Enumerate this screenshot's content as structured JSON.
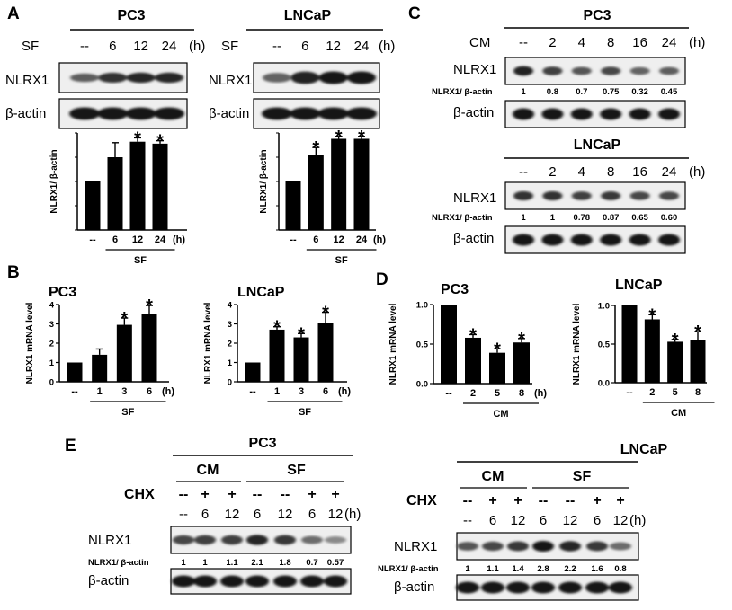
{
  "panels": {
    "A": {
      "letter": "A",
      "pc3": {
        "title": "PC3",
        "condition": "SF",
        "unit": "(h)",
        "time_labels": [
          "--",
          "6",
          "12",
          "24"
        ],
        "proteins": [
          "NLRX1",
          "β-actin"
        ],
        "chart_data": {
          "type": "bar",
          "categories": [
            "--",
            "6",
            "12",
            "24"
          ],
          "values": [
            1.0,
            1.5,
            1.82,
            1.78
          ],
          "errors": [
            0,
            0.3,
            0.08,
            0.06
          ],
          "significant": [
            false,
            false,
            true,
            true
          ],
          "ylabel": "NLRX1/ β-actin",
          "xlabel": "SF",
          "unit": "(h)",
          "ylim": [
            0,
            2
          ]
        }
      },
      "lncap": {
        "title": "LNCaP",
        "condition": "SF",
        "unit": "(h)",
        "time_labels": [
          "--",
          "6",
          "12",
          "24"
        ],
        "proteins": [
          "NLRX1",
          "β-actin"
        ],
        "chart_data": {
          "type": "bar",
          "categories": [
            "--",
            "6",
            "12",
            "24"
          ],
          "values": [
            1.0,
            1.55,
            1.88,
            1.88
          ],
          "errors": [
            0,
            0.15,
            0.05,
            0.05
          ],
          "significant": [
            false,
            true,
            true,
            true
          ],
          "ylabel": "NLRX1/ β-actin",
          "xlabel": "SF",
          "unit": "(h)",
          "ylim": [
            0,
            2
          ]
        }
      }
    },
    "B": {
      "letter": "B",
      "pc3": {
        "title": "PC3",
        "chart_data": {
          "type": "bar",
          "categories": [
            "--",
            "1",
            "3",
            "6"
          ],
          "values": [
            1.0,
            1.4,
            2.95,
            3.5
          ],
          "errors": [
            0,
            0.3,
            0.35,
            0.45
          ],
          "significant": [
            false,
            false,
            true,
            true
          ],
          "ylabel": "NLRX1 mRNA level",
          "xlabel": "SF",
          "unit": "(h)",
          "ylim": [
            0,
            4
          ],
          "yticks": [
            "0",
            "1",
            "2",
            "3",
            "4"
          ]
        }
      },
      "lncap": {
        "title": "LNCaP",
        "chart_data": {
          "type": "bar",
          "categories": [
            "--",
            "1",
            "3",
            "6"
          ],
          "values": [
            1.0,
            2.7,
            2.3,
            3.05
          ],
          "errors": [
            0,
            0.15,
            0.2,
            0.55
          ],
          "significant": [
            false,
            true,
            true,
            true
          ],
          "ylabel": "NLRX1 mRNA level",
          "xlabel": "SF",
          "unit": "(h)",
          "ylim": [
            0,
            4
          ],
          "yticks": [
            "0",
            "1",
            "2",
            "3",
            "4"
          ]
        }
      }
    },
    "C": {
      "letter": "C",
      "pc3": {
        "title": "PC3",
        "condition": "CM",
        "unit": "(h)",
        "time_labels": [
          "--",
          "2",
          "4",
          "8",
          "16",
          "24"
        ],
        "ratio_label": "NLRX1/ β-actin",
        "ratios": [
          "1",
          "0.8",
          "0.7",
          "0.75",
          "0.32",
          "0.45"
        ],
        "proteins": [
          "NLRX1",
          "β-actin"
        ]
      },
      "lncap": {
        "title": "LNCaP",
        "unit": "(h)",
        "time_labels": [
          "--",
          "2",
          "4",
          "8",
          "16",
          "24"
        ],
        "ratio_label": "NLRX1/ β-actin",
        "ratios": [
          "1",
          "1",
          "0.78",
          "0.87",
          "0.65",
          "0.60"
        ],
        "proteins": [
          "NLRX1",
          "β-actin"
        ]
      }
    },
    "D": {
      "letter": "D",
      "pc3": {
        "title": "PC3",
        "chart_data": {
          "type": "bar",
          "categories": [
            "--",
            "2",
            "5",
            "8"
          ],
          "values": [
            1.0,
            0.58,
            0.39,
            0.52
          ],
          "errors": [
            0,
            0.04,
            0.05,
            0.05
          ],
          "significant": [
            false,
            true,
            true,
            true
          ],
          "ylabel": "NLRX1 mRNA level",
          "xlabel": "CM",
          "unit": "(h)",
          "ylim": [
            0,
            1
          ],
          "yticks": [
            "0.0",
            "0.5",
            "1.0"
          ]
        }
      },
      "lncap": {
        "title": "LNCaP",
        "chart_data": {
          "type": "bar",
          "categories": [
            "--",
            "2",
            "5",
            "8"
          ],
          "values": [
            1.0,
            0.82,
            0.53,
            0.55
          ],
          "errors": [
            0,
            0.06,
            0.03,
            0.11
          ],
          "significant": [
            false,
            true,
            true,
            true
          ],
          "ylabel": "NLRX1 mRNA level",
          "xlabel": "CM",
          "ylim": [
            0,
            1
          ],
          "yticks": [
            "0.0",
            "0.5",
            "1.0"
          ]
        }
      }
    },
    "E": {
      "letter": "E",
      "pc3": {
        "title": "PC3",
        "group1": "CM",
        "group2": "SF",
        "chx_label": "CHX",
        "chx": [
          "--",
          "+",
          "+",
          "--",
          "--",
          "+",
          "+"
        ],
        "time_labels": [
          "--",
          "6",
          "12",
          "6",
          "12",
          "6",
          "12"
        ],
        "unit": "(h)",
        "ratio_label": "NLRX1/ β-actin",
        "ratios": [
          "1",
          "1",
          "1.1",
          "2.1",
          "1.8",
          "0.7",
          "0.57"
        ],
        "proteins": [
          "NLRX1",
          "β-actin"
        ]
      },
      "lncap": {
        "title": "LNCaP",
        "group1": "CM",
        "group2": "SF",
        "chx_label": "CHX",
        "chx": [
          "--",
          "+",
          "+",
          "--",
          "--",
          "+",
          "+"
        ],
        "time_labels": [
          "--",
          "6",
          "12",
          "6",
          "12",
          "6",
          "12"
        ],
        "unit": "(h)",
        "ratio_label": "NLRX1/ β-actin",
        "ratios": [
          "1",
          "1.1",
          "1.4",
          "2.8",
          "2.2",
          "1.6",
          "0.8"
        ],
        "proteins": [
          "NLRX1",
          "β-actin"
        ]
      }
    }
  },
  "blot_intensity": {
    "A_pc3_nlrx1": [
      0.55,
      0.85,
      0.9,
      0.9
    ],
    "A_lncap_nlrx1": [
      0.5,
      0.95,
      1,
      1
    ],
    "C_pc3_nlrx1": [
      0.95,
      0.75,
      0.6,
      0.7,
      0.5,
      0.55
    ],
    "C_lncap_nlrx1": [
      0.85,
      0.85,
      0.75,
      0.8,
      0.7,
      0.7
    ],
    "E_pc3_nlrx1": [
      0.7,
      0.75,
      0.75,
      0.9,
      0.8,
      0.45,
      0.25
    ],
    "E_lncap_nlrx1": [
      0.6,
      0.7,
      0.8,
      1,
      0.9,
      0.8,
      0.45
    ]
  }
}
